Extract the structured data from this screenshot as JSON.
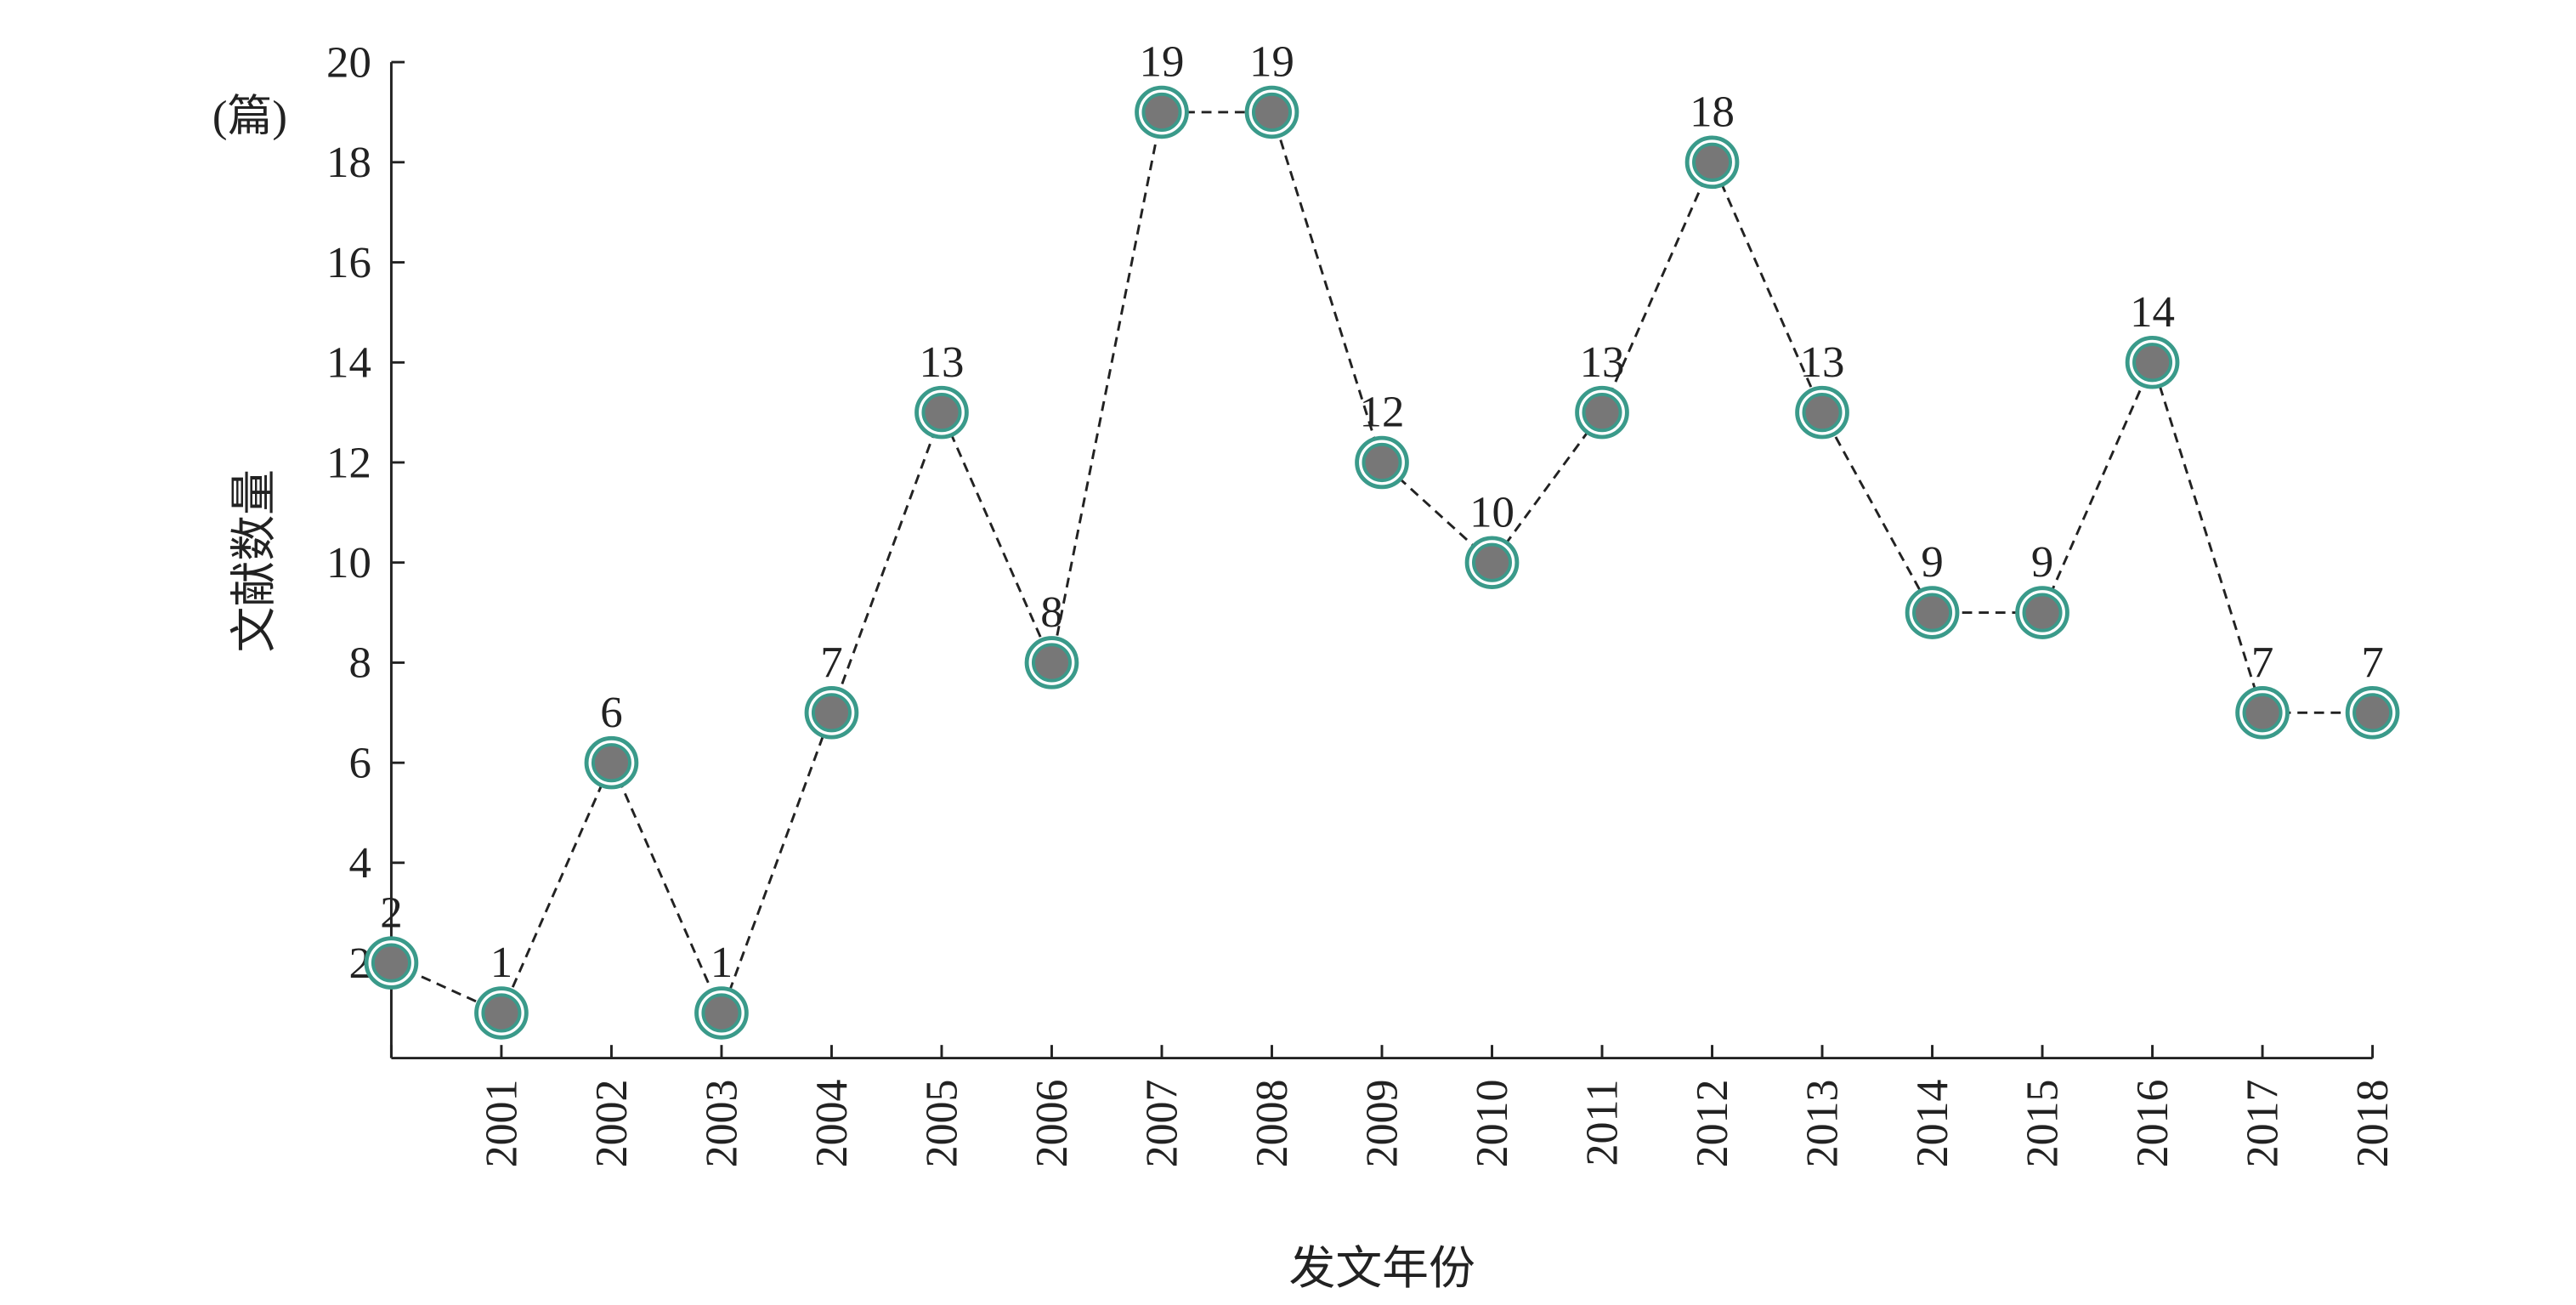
{
  "chart_data": {
    "type": "line",
    "y_label": "文献数量",
    "x_label": "发文年份",
    "unit_label": "(篇)",
    "categories": [
      null,
      "2001",
      "2002",
      "2003",
      "2004",
      "2005",
      "2006",
      "2007",
      "2008",
      "2009",
      "2010",
      "2011",
      "2012",
      "2013",
      "2014",
      "2015",
      "2016",
      "2017",
      "2018"
    ],
    "series": [
      {
        "name": "文献数量",
        "color": "#3a9a8a",
        "values": [
          2,
          1,
          6,
          1,
          7,
          13,
          8,
          19,
          19,
          12,
          10,
          13,
          18,
          13,
          9,
          9,
          14,
          7,
          7
        ]
      }
    ],
    "ylim": [
      0,
      20
    ],
    "yticks": [
      2,
      4,
      6,
      8,
      10,
      12,
      14,
      16,
      18,
      20
    ],
    "line_style": "dashed"
  }
}
